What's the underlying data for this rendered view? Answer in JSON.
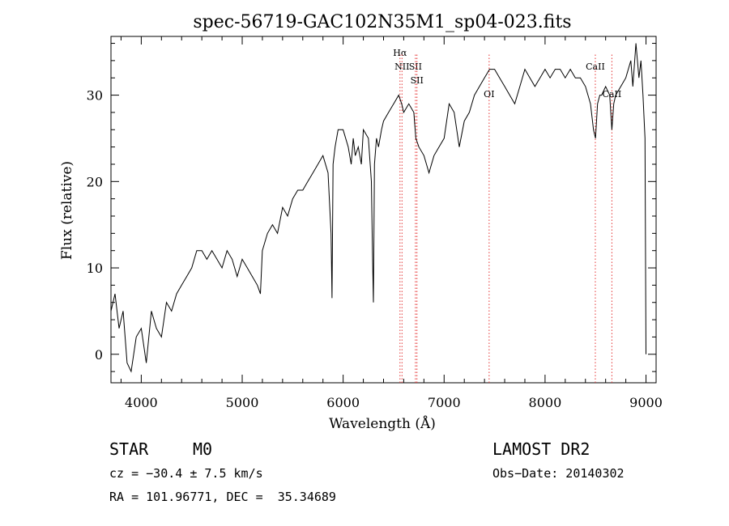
{
  "chart_data": {
    "type": "line",
    "title": "spec-56719-GAC102N35M1_sp04-023.fits",
    "xlabel": "Wavelength (Å)",
    "ylabel": "Flux (relative)",
    "xlim": [
      3700,
      9100
    ],
    "ylim": [
      -3.3,
      36.8
    ],
    "x_ticks": [
      4000,
      5000,
      6000,
      7000,
      8000,
      9000
    ],
    "x_tick_labels": [
      "4000",
      "5000",
      "6000",
      "7000",
      "8000",
      "9000"
    ],
    "y_ticks": [
      0,
      10,
      20,
      30
    ],
    "y_tick_labels": [
      "0",
      "10",
      "20",
      "30"
    ],
    "grid": false,
    "line_color": "#000000",
    "line_marker_color": "#e53333",
    "series": [
      {
        "x": [
          3700,
          3740,
          3780,
          3820,
          3860,
          3900,
          3950,
          4000,
          4050,
          4100,
          4150,
          4200,
          4250,
          4300,
          4350,
          4400,
          4450,
          4500,
          4550,
          4600,
          4650,
          4700,
          4750,
          4800,
          4850,
          4900,
          4950,
          5000,
          5050,
          5100,
          5150,
          5180,
          5200,
          5250,
          5300,
          5350,
          5400,
          5450,
          5500,
          5550,
          5600,
          5650,
          5700,
          5750,
          5800,
          5850,
          5880,
          5890,
          5900,
          5920,
          5950,
          6000,
          6050,
          6080,
          6100,
          6120,
          6150,
          6180,
          6200,
          6250,
          6280,
          6290,
          6300,
          6310,
          6330,
          6350,
          6380,
          6400,
          6450,
          6500,
          6550,
          6580,
          6600,
          6650,
          6700,
          6720,
          6750,
          6800,
          6850,
          6900,
          6950,
          7000,
          7050,
          7100,
          7150,
          7200,
          7250,
          7300,
          7350,
          7400,
          7450,
          7500,
          7550,
          7600,
          7650,
          7700,
          7750,
          7800,
          7850,
          7900,
          7950,
          8000,
          8050,
          8100,
          8150,
          8200,
          8250,
          8300,
          8350,
          8400,
          8450,
          8480,
          8500,
          8520,
          8542,
          8560,
          8600,
          8640,
          8662,
          8680,
          8700,
          8750,
          8800,
          8850,
          8870,
          8900,
          8930,
          8950,
          8970,
          8990,
          9000
        ],
        "y": [
          5,
          7,
          3,
          5,
          -1,
          -2,
          2,
          3,
          -1,
          5,
          3,
          2,
          6,
          5,
          7,
          8,
          9,
          10,
          12,
          12,
          11,
          12,
          11,
          10,
          12,
          11,
          9,
          11,
          10,
          9,
          8,
          7,
          12,
          14,
          15,
          14,
          17,
          16,
          18,
          19,
          19,
          20,
          21,
          22,
          23,
          21,
          14,
          6.5,
          22,
          24,
          26,
          26,
          24,
          22,
          25,
          23,
          24,
          22,
          26,
          25,
          20,
          12,
          6,
          22,
          25,
          24,
          26,
          27,
          28,
          29,
          30,
          29,
          28,
          29,
          28,
          25,
          24,
          23,
          21,
          23,
          24,
          25,
          29,
          28,
          24,
          27,
          28,
          30,
          31,
          32,
          33,
          33,
          32,
          31,
          30,
          29,
          31,
          33,
          32,
          31,
          32,
          33,
          32,
          33,
          33,
          32,
          33,
          32,
          32,
          31,
          29,
          26,
          25,
          29,
          30,
          30,
          31,
          30,
          26,
          29,
          30,
          31,
          32,
          34,
          31,
          36,
          32,
          34,
          30,
          25,
          0
        ]
      }
    ],
    "lines": [
      {
        "name": "Hα",
        "x": 6563,
        "label_rows": 1
      },
      {
        "name": "NII",
        "x": 6583,
        "label_rows": 2
      },
      {
        "name": "SII",
        "x": 6716,
        "label_rows": 2
      },
      {
        "name": "SII",
        "x": 6731,
        "label_rows": 3
      },
      {
        "name": "OI",
        "x": 7446,
        "label_rows": 4
      },
      {
        "name": "CaII",
        "x": 8498,
        "label_rows": 2
      },
      {
        "name": "CaII",
        "x": 8662,
        "label_rows": 4
      }
    ]
  },
  "info": {
    "object_type": "STAR",
    "subclass": "M0",
    "survey": "LAMOST DR2",
    "cz": "cz = −30.4 ± 7.5 km/s",
    "obs_date": "Obs−Date: 20140302",
    "coords": "RA = 101.96771, DEC =  35.34689"
  }
}
